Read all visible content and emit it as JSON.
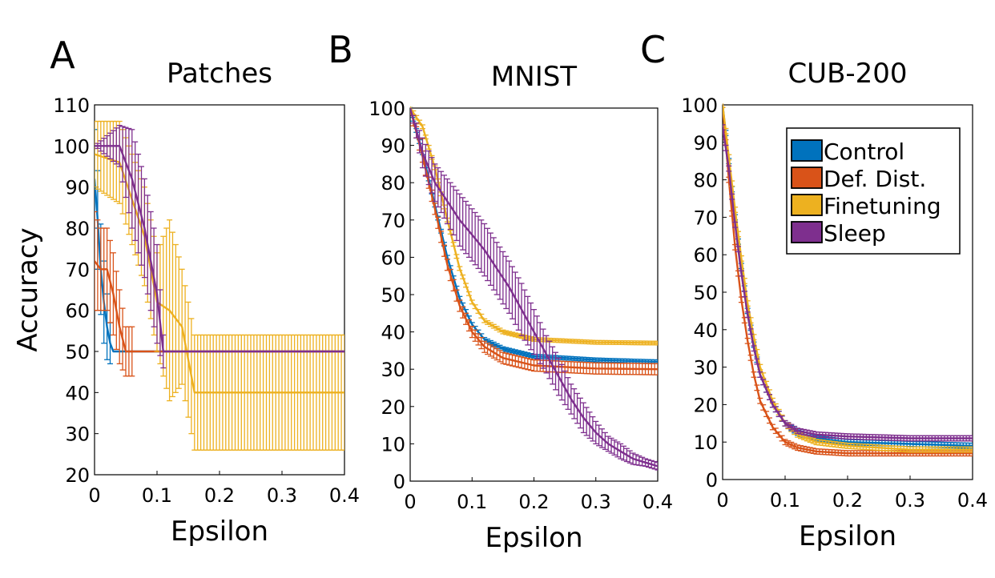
{
  "colors": {
    "control": "#0072BD",
    "defdist": "#D95319",
    "finetuning": "#EDB120",
    "sleep": "#7E2F8E"
  },
  "legend": {
    "placement": "top-right",
    "panel": "C",
    "items": [
      {
        "label": "Control",
        "color": "#0072BD"
      },
      {
        "label": "Def. Dist.",
        "color": "#D95319"
      },
      {
        "label": "Finetuning",
        "color": "#EDB120"
      },
      {
        "label": "Sleep",
        "color": "#7E2F8E"
      }
    ]
  },
  "chart_data": [
    {
      "type": "line",
      "panel_letter": "A",
      "title": "Patches",
      "xlabel": "Epsilon",
      "ylabel": "Accuracy",
      "xlim": [
        0,
        0.4
      ],
      "ylim": [
        20,
        110
      ],
      "xticks": [
        "0",
        "0.1",
        "0.2",
        "0.3",
        "0.4"
      ],
      "yticks": [
        "20",
        "30",
        "40",
        "50",
        "60",
        "70",
        "80",
        "90",
        "100",
        "110"
      ],
      "xtick_values": [
        0,
        0.1,
        0.2,
        0.3,
        0.4
      ],
      "ytick_values": [
        20,
        30,
        40,
        50,
        60,
        70,
        80,
        90,
        100,
        110
      ],
      "series": [
        {
          "key": "control",
          "x": [
            0,
            0.005,
            0.01,
            0.015,
            0.02,
            0.025,
            0.03,
            0.4
          ],
          "y": [
            92,
            82,
            70,
            62,
            56,
            52,
            50,
            50
          ],
          "err": [
            12,
            12,
            11,
            10,
            8,
            5,
            0,
            0
          ],
          "err_until": 0.03
        },
        {
          "key": "defdist",
          "x": [
            0,
            0.01,
            0.02,
            0.03,
            0.04,
            0.05,
            0.06,
            0.4
          ],
          "y": [
            72,
            70,
            70,
            64,
            56,
            50,
            50,
            50
          ],
          "err": [
            12,
            10,
            10,
            10,
            9,
            6,
            6,
            0
          ],
          "err_until": 0.06
        },
        {
          "key": "finetuning",
          "x": [
            0,
            0.04,
            0.08,
            0.1,
            0.12,
            0.14,
            0.16,
            0.27,
            0.34,
            0.4
          ],
          "y": [
            98,
            96,
            78,
            62,
            60,
            56,
            40,
            40,
            40,
            40
          ],
          "err": [
            8,
            10,
            12,
            12,
            22,
            14,
            14,
            14,
            14,
            14
          ],
          "err_until": 0.4
        },
        {
          "key": "sleep",
          "x": [
            0,
            0.04,
            0.06,
            0.08,
            0.1,
            0.11,
            0.4
          ],
          "y": [
            100,
            100,
            92,
            80,
            64,
            50,
            50
          ],
          "err": [
            0,
            5,
            12,
            12,
            12,
            4,
            0
          ],
          "err_until": 0.11
        }
      ]
    },
    {
      "type": "line",
      "panel_letter": "B",
      "title": "MNIST",
      "xlabel": "Epsilon",
      "ylabel": "",
      "xlim": [
        0,
        0.4
      ],
      "ylim": [
        0,
        100
      ],
      "xticks": [
        "0",
        "0.1",
        "0.2",
        "0.3",
        "0.4"
      ],
      "yticks": [
        "0",
        "10",
        "20",
        "30",
        "40",
        "50",
        "60",
        "70",
        "80",
        "90",
        "100"
      ],
      "xtick_values": [
        0,
        0.1,
        0.2,
        0.3,
        0.4
      ],
      "ytick_values": [
        0,
        10,
        20,
        30,
        40,
        50,
        60,
        70,
        80,
        90,
        100
      ],
      "series": [
        {
          "key": "control",
          "x": [
            0,
            0.02,
            0.04,
            0.06,
            0.08,
            0.1,
            0.12,
            0.15,
            0.2,
            0.3,
            0.4
          ],
          "y": [
            100,
            88,
            74,
            60,
            49,
            42,
            38,
            35.5,
            33.5,
            32.5,
            32
          ],
          "err": 0.5
        },
        {
          "key": "defdist",
          "x": [
            0,
            0.02,
            0.04,
            0.06,
            0.08,
            0.1,
            0.12,
            0.15,
            0.2,
            0.3,
            0.4
          ],
          "y": [
            100,
            87,
            73,
            58,
            47,
            40,
            36,
            33,
            31,
            30.2,
            30
          ],
          "err": 1.5
        },
        {
          "key": "finetuning",
          "x": [
            0,
            0.02,
            0.04,
            0.06,
            0.08,
            0.1,
            0.12,
            0.15,
            0.2,
            0.3,
            0.4
          ],
          "y": [
            100,
            95,
            84,
            70,
            57,
            48,
            43,
            40,
            38,
            37.2,
            37
          ],
          "err": 0.5
        },
        {
          "key": "sleep",
          "x": [
            0,
            0.02,
            0.04,
            0.06,
            0.08,
            0.1,
            0.12,
            0.14,
            0.16,
            0.18,
            0.2,
            0.22,
            0.24,
            0.26,
            0.28,
            0.3,
            0.32,
            0.34,
            0.36,
            0.38,
            0.4
          ],
          "y": [
            100,
            88,
            80,
            75,
            70,
            66,
            62,
            57,
            52,
            46,
            40,
            34,
            28,
            22,
            17,
            13,
            10,
            8,
            6,
            5,
            4
          ],
          "err": [
            0,
            4,
            5,
            6,
            7,
            7,
            7,
            7,
            7,
            7,
            6,
            5,
            5,
            4,
            4,
            3,
            2,
            2,
            1.5,
            1,
            1
          ]
        }
      ]
    },
    {
      "type": "line",
      "panel_letter": "C",
      "title": "CUB-200",
      "xlabel": "Epsilon",
      "ylabel": "",
      "xlim": [
        0,
        0.4
      ],
      "ylim": [
        0,
        100
      ],
      "xticks": [
        "0",
        "0.1",
        "0.2",
        "0.3",
        "0.4"
      ],
      "yticks": [
        "0",
        "10",
        "20",
        "30",
        "40",
        "50",
        "60",
        "70",
        "80",
        "90",
        "100"
      ],
      "xtick_values": [
        0,
        0.1,
        0.2,
        0.3,
        0.4
      ],
      "ytick_values": [
        0,
        10,
        20,
        30,
        40,
        50,
        60,
        70,
        80,
        90,
        100
      ],
      "series": [
        {
          "key": "control",
          "x": [
            0,
            0.01,
            0.02,
            0.03,
            0.04,
            0.05,
            0.06,
            0.08,
            0.1,
            0.12,
            0.15,
            0.2,
            0.3,
            0.4
          ],
          "y": [
            100,
            85,
            70,
            57,
            45,
            36,
            28,
            20,
            15,
            12.5,
            11,
            10,
            9.5,
            9
          ],
          "err": 0.7
        },
        {
          "key": "defdist",
          "x": [
            0,
            0.01,
            0.02,
            0.03,
            0.04,
            0.05,
            0.06,
            0.08,
            0.1,
            0.12,
            0.15,
            0.2,
            0.3,
            0.4
          ],
          "y": [
            100,
            80,
            62,
            48,
            37,
            28,
            21,
            14,
            10,
            8.5,
            7.5,
            7,
            7,
            7
          ],
          "err": 0.7
        },
        {
          "key": "finetuning",
          "x": [
            0,
            0.01,
            0.02,
            0.03,
            0.04,
            0.05,
            0.06,
            0.08,
            0.1,
            0.12,
            0.15,
            0.2,
            0.3,
            0.4
          ],
          "y": [
            100,
            86,
            72,
            59,
            47,
            38,
            30,
            21,
            15,
            12,
            10,
            9,
            8,
            8
          ],
          "err": 0.7
        },
        {
          "key": "sleep",
          "x": [
            0,
            0.01,
            0.02,
            0.03,
            0.04,
            0.05,
            0.06,
            0.08,
            0.1,
            0.12,
            0.15,
            0.2,
            0.3,
            0.4
          ],
          "y": [
            94,
            83,
            68,
            55,
            44,
            35,
            28,
            20,
            15,
            13,
            12,
            11.5,
            11,
            11
          ],
          "err": 0.7
        }
      ]
    }
  ]
}
